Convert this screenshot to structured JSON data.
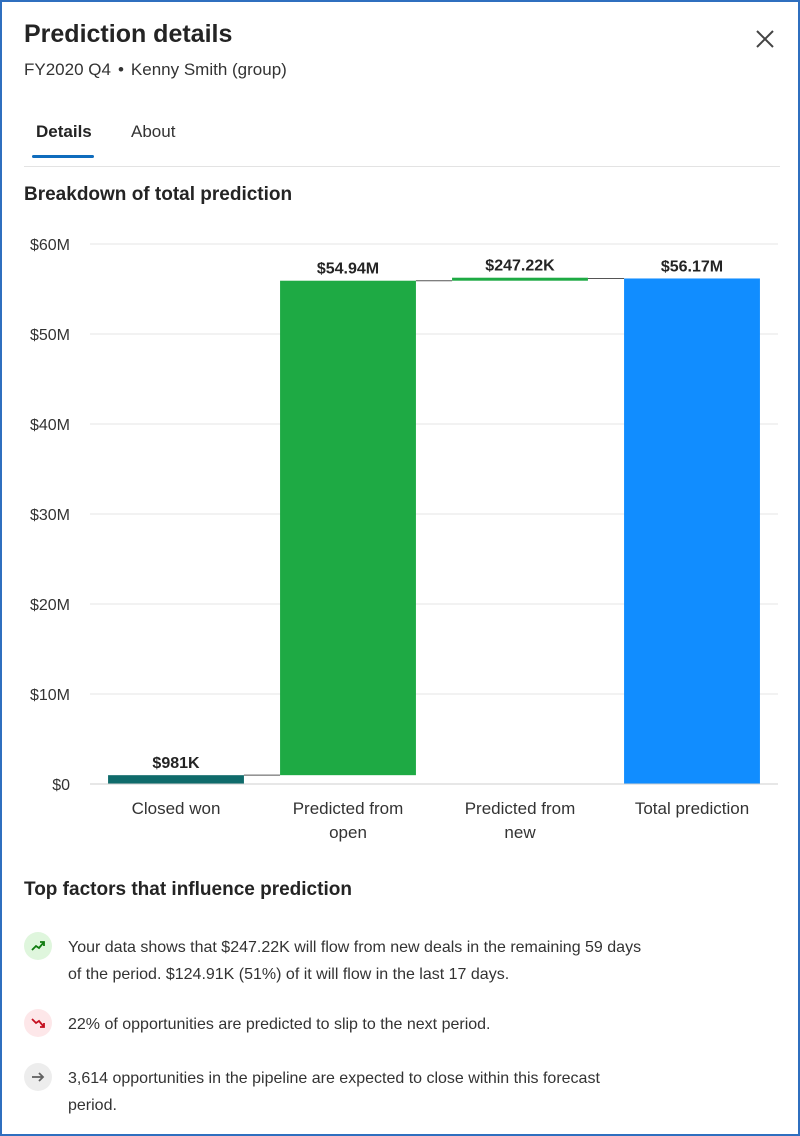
{
  "panel": {
    "title": "Prediction details",
    "period": "FY2020 Q4",
    "separator": "•",
    "owner": "Kenny Smith (group)",
    "close_icon": "close-icon"
  },
  "tabs": [
    {
      "label": "Details",
      "active": true
    },
    {
      "label": "About",
      "active": false
    }
  ],
  "breakdown": {
    "heading": "Breakdown of total prediction"
  },
  "chart_data": {
    "type": "bar",
    "subtype": "waterfall",
    "title": "Breakdown of total prediction",
    "categories": [
      "Closed won",
      "Predicted from open",
      "Predicted from new",
      "Total prediction"
    ],
    "category_lines": [
      [
        "Closed won"
      ],
      [
        "Predicted from",
        "open"
      ],
      [
        "Predicted from",
        "new"
      ],
      [
        "Total prediction"
      ]
    ],
    "values": [
      0.981,
      54.94,
      0.24722,
      56.17
    ],
    "bases": [
      0,
      0.981,
      55.921,
      0
    ],
    "data_labels": [
      "$981K",
      "$54.94M",
      "$247.22K",
      "$56.17M"
    ],
    "colors": [
      "#0f6b6b",
      "#1eaa44",
      "#1eaa44",
      "#118dff"
    ],
    "y_ticks": [
      0,
      10,
      20,
      30,
      40,
      50,
      60
    ],
    "y_tick_labels": [
      "$0",
      "$10M",
      "$20M",
      "$30M",
      "$40M",
      "$50M",
      "$60M"
    ],
    "ylim": [
      0,
      60
    ],
    "unit": "$M",
    "grid": true,
    "connector_lines": true
  },
  "factors": {
    "heading": "Top factors that influence prediction",
    "items": [
      {
        "icon": "trend-up-icon",
        "line1": "Your data shows that $247.22K will flow from new deals in the remaining 59 days",
        "line2": "of the period. $124.91K (51%) of it will flow in the last 17 days.",
        "badge_color": "#dff6dd",
        "icon_color": "#107c10"
      },
      {
        "icon": "trend-down-icon",
        "line1": "22% of opportunities are predicted to slip to the next period.",
        "line2": "",
        "badge_color": "#fde7e9",
        "icon_color": "#c50f1f"
      },
      {
        "icon": "arrow-right-icon",
        "line1": "3,614 opportunities in the pipeline are expected to close within this forecast",
        "line2": "period.",
        "badge_color": "#ededed",
        "icon_color": "#616161"
      }
    ]
  }
}
